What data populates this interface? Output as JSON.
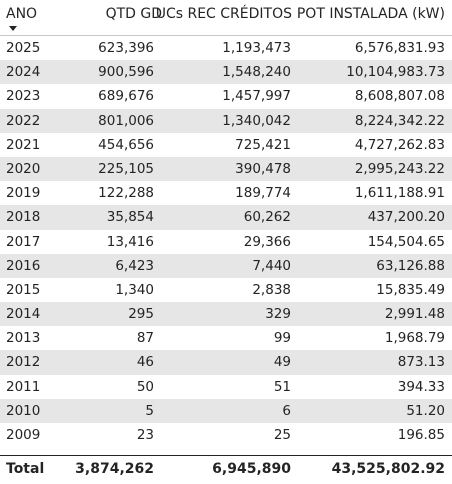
{
  "header": {
    "ano": "ANO",
    "qtd_gd": "QTD GD",
    "ucs": "UCs REC CRÉDITOS",
    "pot": "POT INSTALADA (kW)"
  },
  "rows": [
    {
      "ano": "2025",
      "qtd": "623,396",
      "ucs": "1,193,473",
      "pot": "6,576,831.93"
    },
    {
      "ano": "2024",
      "qtd": "900,596",
      "ucs": "1,548,240",
      "pot": "10,104,983.73"
    },
    {
      "ano": "2023",
      "qtd": "689,676",
      "ucs": "1,457,997",
      "pot": "8,608,807.08"
    },
    {
      "ano": "2022",
      "qtd": "801,006",
      "ucs": "1,340,042",
      "pot": "8,224,342.22"
    },
    {
      "ano": "2021",
      "qtd": "454,656",
      "ucs": "725,421",
      "pot": "4,727,262.83"
    },
    {
      "ano": "2020",
      "qtd": "225,105",
      "ucs": "390,478",
      "pot": "2,995,243.22"
    },
    {
      "ano": "2019",
      "qtd": "122,288",
      "ucs": "189,774",
      "pot": "1,611,188.91"
    },
    {
      "ano": "2018",
      "qtd": "35,854",
      "ucs": "60,262",
      "pot": "437,200.20"
    },
    {
      "ano": "2017",
      "qtd": "13,416",
      "ucs": "29,366",
      "pot": "154,504.65"
    },
    {
      "ano": "2016",
      "qtd": "6,423",
      "ucs": "7,440",
      "pot": "63,126.88"
    },
    {
      "ano": "2015",
      "qtd": "1,340",
      "ucs": "2,838",
      "pot": "15,835.49"
    },
    {
      "ano": "2014",
      "qtd": "295",
      "ucs": "329",
      "pot": "2,991.48"
    },
    {
      "ano": "2013",
      "qtd": "87",
      "ucs": "99",
      "pot": "1,968.79"
    },
    {
      "ano": "2012",
      "qtd": "46",
      "ucs": "49",
      "pot": "873.13"
    },
    {
      "ano": "2011",
      "qtd": "50",
      "ucs": "51",
      "pot": "394.33"
    },
    {
      "ano": "2010",
      "qtd": "5",
      "ucs": "6",
      "pot": "51.20"
    },
    {
      "ano": "2009",
      "qtd": "23",
      "ucs": "25",
      "pot": "196.85"
    }
  ],
  "total": {
    "label": "Total",
    "qtd": "3,874,262",
    "ucs": "6,945,890",
    "pot": "43,525,802.92"
  },
  "sort_icon": "sort-descending-arrow-icon"
}
